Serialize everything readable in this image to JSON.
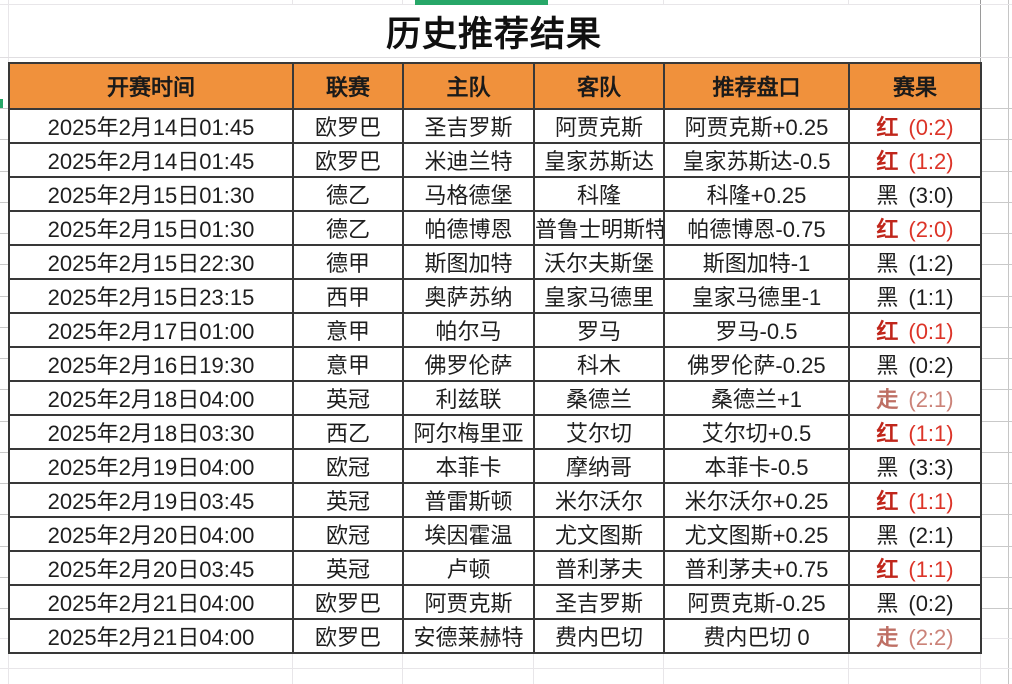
{
  "page": {
    "title": "历史推荐结果"
  },
  "table": {
    "headers": [
      "开赛时间",
      "联赛",
      "主队",
      "客队",
      "推荐盘口",
      "赛果"
    ],
    "rows": [
      {
        "date": "2025年2月14日01:45",
        "league": "欧罗巴",
        "home": "圣吉罗斯",
        "away": "阿贾克斯",
        "handicap": "阿贾克斯+0.25",
        "result": {
          "type": "red",
          "label": "红",
          "score": "(0:2)"
        }
      },
      {
        "date": "2025年2月14日01:45",
        "league": "欧罗巴",
        "home": "米迪兰特",
        "away": "皇家苏斯达",
        "handicap": "皇家苏斯达-0.5",
        "result": {
          "type": "red",
          "label": "红",
          "score": "(1:2)"
        }
      },
      {
        "date": "2025年2月15日01:30",
        "league": "德乙",
        "home": "马格德堡",
        "away": "科隆",
        "handicap": "科隆+0.25",
        "result": {
          "type": "black",
          "label": "黑",
          "score": "(3:0)"
        }
      },
      {
        "date": "2025年2月15日01:30",
        "league": "德乙",
        "home": "帕德博恩",
        "away": "普鲁士明斯特",
        "handicap": "帕德博恩-0.75",
        "result": {
          "type": "red",
          "label": "红",
          "score": "(2:0)"
        }
      },
      {
        "date": "2025年2月15日22:30",
        "league": "德甲",
        "home": "斯图加特",
        "away": "沃尔夫斯堡",
        "handicap": "斯图加特-1",
        "result": {
          "type": "black",
          "label": "黑",
          "score": "(1:2)"
        }
      },
      {
        "date": "2025年2月15日23:15",
        "league": "西甲",
        "home": "奥萨苏纳",
        "away": "皇家马德里",
        "handicap": "皇家马德里-1",
        "result": {
          "type": "black",
          "label": "黑",
          "score": "(1:1)"
        }
      },
      {
        "date": "2025年2月17日01:00",
        "league": "意甲",
        "home": "帕尔马",
        "away": "罗马",
        "handicap": "罗马-0.5",
        "result": {
          "type": "red",
          "label": "红",
          "score": "(0:1)"
        }
      },
      {
        "date": "2025年2月16日19:30",
        "league": "意甲",
        "home": "佛罗伦萨",
        "away": "科木",
        "handicap": "佛罗伦萨-0.25",
        "result": {
          "type": "black",
          "label": "黑",
          "score": "(0:2)"
        }
      },
      {
        "date": "2025年2月18日04:00",
        "league": "英冠",
        "home": "利兹联",
        "away": "桑德兰",
        "handicap": "桑德兰+1",
        "result": {
          "type": "push",
          "label": "走",
          "score": "(2:1)"
        }
      },
      {
        "date": "2025年2月18日03:30",
        "league": "西乙",
        "home": "阿尔梅里亚",
        "away": "艾尔切",
        "handicap": "艾尔切+0.5",
        "result": {
          "type": "red",
          "label": "红",
          "score": "(1:1)"
        }
      },
      {
        "date": "2025年2月19日04:00",
        "league": "欧冠",
        "home": "本菲卡",
        "away": "摩纳哥",
        "handicap": "本菲卡-0.5",
        "result": {
          "type": "black",
          "label": "黑",
          "score": "(3:3)"
        }
      },
      {
        "date": "2025年2月19日03:45",
        "league": "英冠",
        "home": "普雷斯顿",
        "away": "米尔沃尔",
        "handicap": "米尔沃尔+0.25",
        "result": {
          "type": "red",
          "label": "红",
          "score": "(1:1)"
        }
      },
      {
        "date": "2025年2月20日04:00",
        "league": "欧冠",
        "home": "埃因霍温",
        "away": "尤文图斯",
        "handicap": "尤文图斯+0.25",
        "result": {
          "type": "black",
          "label": "黑",
          "score": "(2:1)"
        }
      },
      {
        "date": "2025年2月20日03:45",
        "league": "英冠",
        "home": "卢顿",
        "away": "普利茅夫",
        "handicap": "普利茅夫+0.75",
        "result": {
          "type": "red",
          "label": "红",
          "score": "(1:1)"
        }
      },
      {
        "date": "2025年2月21日04:00",
        "league": "欧罗巴",
        "home": "阿贾克斯",
        "away": "圣吉罗斯",
        "handicap": "阿贾克斯-0.25",
        "result": {
          "type": "black",
          "label": "黑",
          "score": "(0:2)"
        }
      },
      {
        "date": "2025年2月21日04:00",
        "league": "欧罗巴",
        "home": "安德莱赫特",
        "away": "费内巴切",
        "handicap": "费内巴切 0",
        "result": {
          "type": "push",
          "label": "走",
          "score": "(2:2)"
        }
      }
    ]
  },
  "colors": {
    "header_bg": "#F0913C",
    "text_black": "#1E1E1E",
    "result_red": "#C0261B",
    "result_red_score": "#DC3428",
    "result_push": "#BE6F64",
    "result_push_score": "#CB8278",
    "accent_green": "#27A768"
  }
}
